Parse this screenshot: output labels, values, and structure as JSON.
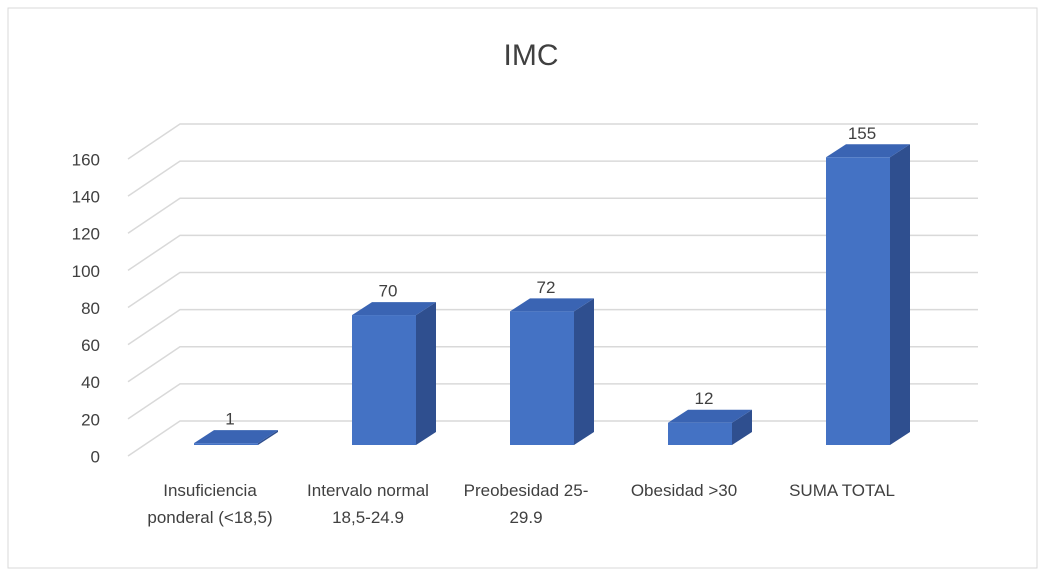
{
  "chart_data": {
    "type": "bar3d",
    "title": "IMC",
    "categories": [
      "Insuficiencia ponderal (<18,5)",
      "Intervalo normal 18,5-24.9",
      "Preobesidad 25-29.9",
      "Obesidad >30",
      "SUMA TOTAL"
    ],
    "values": [
      1,
      70,
      72,
      12,
      155
    ],
    "color": "#4472c4",
    "ylim": [
      0,
      160
    ],
    "yticks": [
      0,
      20,
      40,
      60,
      80,
      100,
      120,
      140,
      160
    ],
    "grid": true
  }
}
